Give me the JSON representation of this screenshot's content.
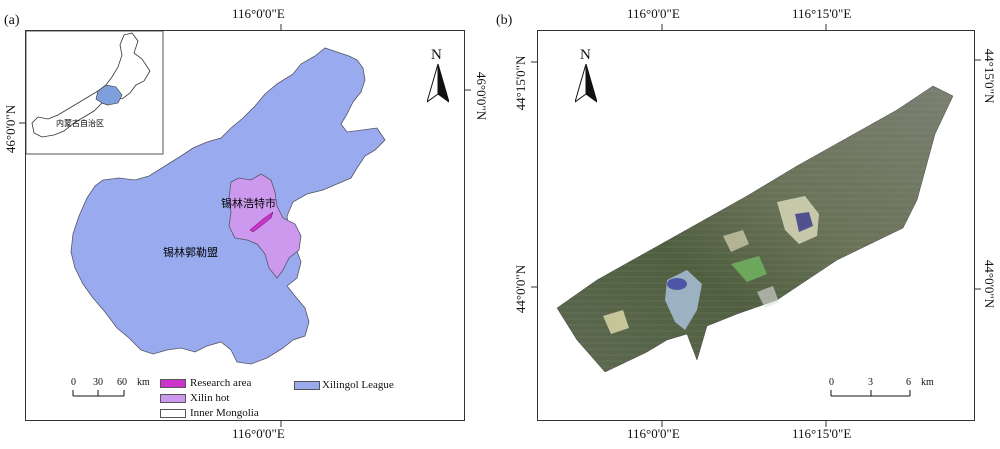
{
  "panel_a": {
    "label": "(a)",
    "top_lon": "116°0'0\"E",
    "bottom_lon": "116°0'0\"E",
    "left_lat": "46°0'0\"N",
    "right_lat": "46°0'0\"N",
    "north": "N",
    "inset_label": "内蒙古自治区",
    "region_xilinhot": "锡林浩特市",
    "region_league": "锡林郭勒盟",
    "scale": {
      "ticks": [
        "0",
        "30",
        "60"
      ],
      "unit": "km"
    },
    "legend": [
      {
        "label": "Research area",
        "color": "#cc33cc"
      },
      {
        "label": "Xilin hot",
        "color": "#cc99ee"
      },
      {
        "label": "Inner Mongolia",
        "color": "#ffffff"
      },
      {
        "label": "Xilingol League",
        "color": "#99aaee"
      }
    ],
    "colors": {
      "league": "#99aaee",
      "xilinhot": "#cc99ee",
      "research": "#cc33cc",
      "inset_highlight": "#7f9fdc"
    }
  },
  "panel_b": {
    "label": "(b)",
    "top_lon_1": "116°0'0\"E",
    "top_lon_2": "116°15'0\"E",
    "bottom_lon_1": "116°0'0\"E",
    "bottom_lon_2": "116°15'0\"E",
    "left_lat_1": "44°15'0\"N",
    "left_lat_2": "44°0'0\"N",
    "right_lat_1": "44°15'0\"N",
    "right_lat_2": "44°0'0\"N",
    "north": "N",
    "scale": {
      "ticks": [
        "0",
        "3",
        "6"
      ],
      "unit": "km"
    }
  }
}
